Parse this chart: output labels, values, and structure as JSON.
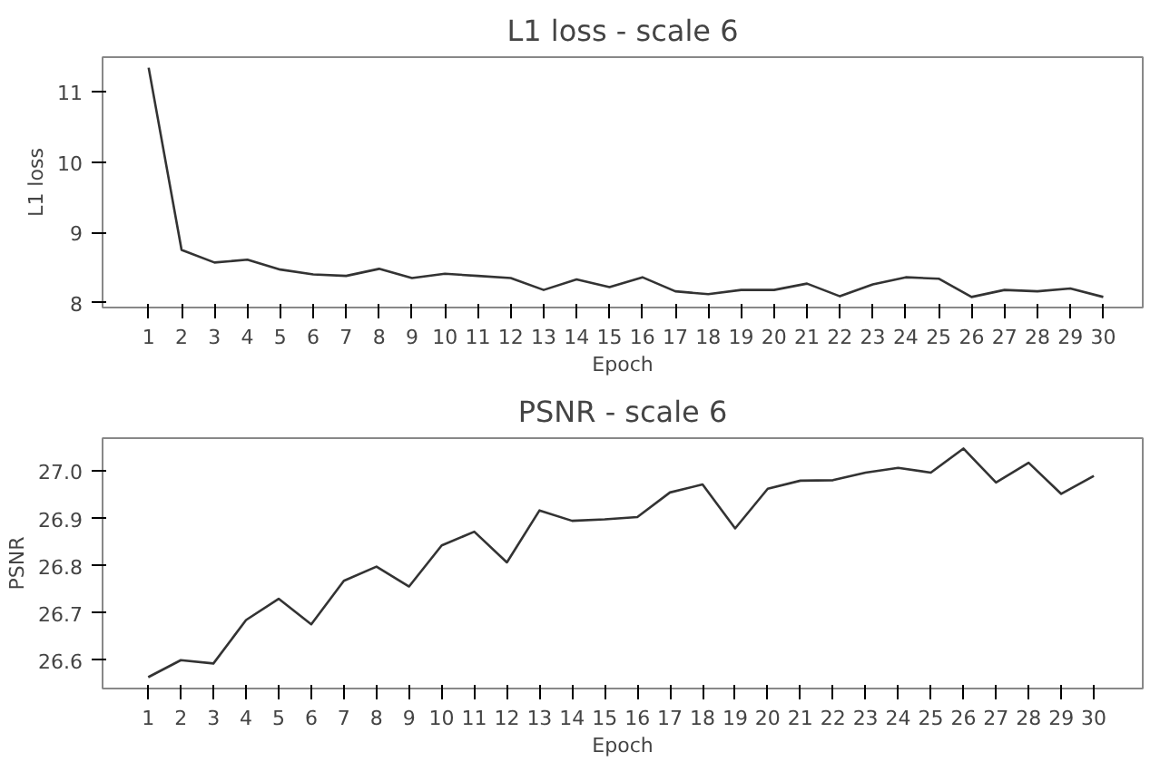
{
  "chart_data": [
    {
      "type": "line",
      "title": "L1 loss - scale 6",
      "xlabel": "Epoch",
      "ylabel": "L1 loss",
      "grid": false,
      "x": [
        1,
        2,
        3,
        4,
        5,
        6,
        7,
        8,
        9,
        10,
        11,
        12,
        13,
        14,
        15,
        16,
        17,
        18,
        19,
        20,
        21,
        22,
        23,
        24,
        25,
        26,
        27,
        28,
        29,
        30
      ],
      "series": [
        {
          "color": "#333333",
          "values": [
            11.34,
            8.75,
            8.57,
            8.61,
            8.47,
            8.4,
            8.38,
            8.48,
            8.35,
            8.41,
            8.38,
            8.35,
            8.18,
            8.33,
            8.22,
            8.36,
            8.16,
            8.12,
            8.18,
            8.18,
            8.27,
            8.09,
            8.26,
            8.36,
            8.34,
            8.08,
            8.18,
            8.16,
            8.2,
            8.08
          ]
        }
      ],
      "xlim": [
        -0.4,
        31.2
      ],
      "ylim": [
        7.93,
        11.49
      ],
      "xticks": [
        1,
        2,
        3,
        4,
        5,
        6,
        7,
        8,
        9,
        10,
        11,
        12,
        13,
        14,
        15,
        16,
        17,
        18,
        19,
        20,
        21,
        22,
        23,
        24,
        25,
        26,
        27,
        28,
        29,
        30
      ],
      "yticks": [
        8,
        9,
        10,
        11
      ]
    },
    {
      "type": "line",
      "title": "PSNR - scale 6",
      "xlabel": "Epoch",
      "ylabel": "PSNR",
      "grid": false,
      "x": [
        1,
        2,
        3,
        4,
        5,
        6,
        7,
        8,
        9,
        10,
        11,
        12,
        13,
        14,
        15,
        16,
        17,
        18,
        19,
        20,
        21,
        22,
        23,
        24,
        25,
        26,
        27,
        28,
        29,
        30
      ],
      "series": [
        {
          "color": "#333333",
          "values": [
            26.564,
            26.6,
            26.593,
            26.685,
            26.73,
            26.676,
            26.768,
            26.798,
            26.756,
            26.843,
            26.872,
            26.807,
            26.917,
            26.895,
            26.898,
            26.903,
            26.955,
            26.972,
            26.879,
            26.963,
            26.98,
            26.981,
            26.997,
            27.007,
            26.997,
            27.048,
            26.976,
            27.018,
            26.952,
            26.99
          ]
        }
      ],
      "xlim": [
        -0.4,
        31.5
      ],
      "ylim": [
        26.54,
        27.07
      ],
      "xticks": [
        1,
        2,
        3,
        4,
        5,
        6,
        7,
        8,
        9,
        10,
        11,
        12,
        13,
        14,
        15,
        16,
        17,
        18,
        19,
        20,
        21,
        22,
        23,
        24,
        25,
        26,
        27,
        28,
        29,
        30
      ],
      "yticks": [
        {
          "value": 26.6,
          "label": "26.6"
        },
        {
          "value": 26.7,
          "label": "26.7"
        },
        {
          "value": 26.8,
          "label": "26.8"
        },
        {
          "value": 26.9,
          "label": "26.9"
        },
        {
          "value": 27.0,
          "label": "27.0"
        }
      ]
    }
  ]
}
